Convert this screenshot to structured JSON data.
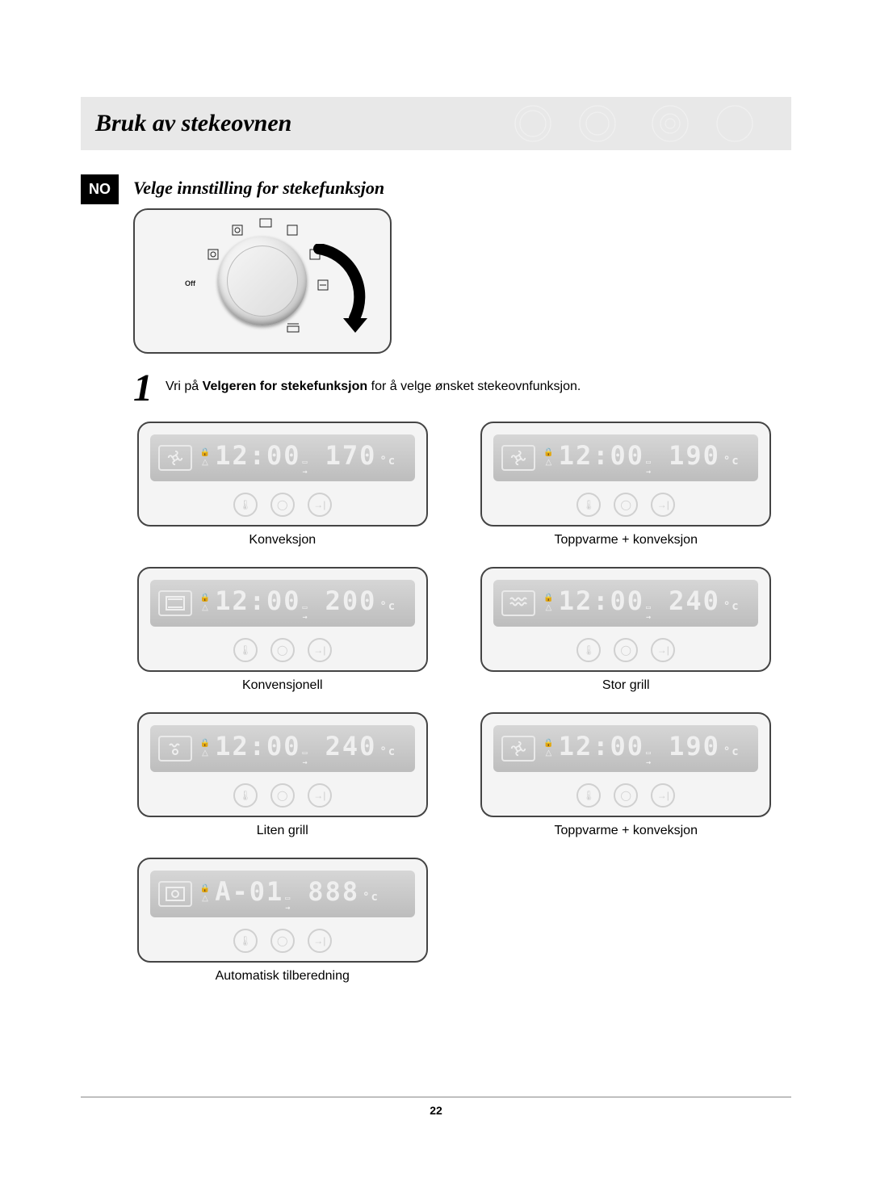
{
  "header": {
    "title": "Bruk av stekeovnen"
  },
  "lang_badge": "NO",
  "subtitle": "Velge innstilling for stekefunksjon",
  "dial": {
    "off_label": "Off"
  },
  "step": {
    "number": "1",
    "text_before": "Vri på ",
    "bold": "Velgeren for stekefunksjon",
    "text_after": " for å velge ønsket stekeovnfunksjon."
  },
  "displays": [
    {
      "mode": "fan",
      "time": "12:00",
      "temp": "170",
      "unit": "°c",
      "caption": "Konveksjon"
    },
    {
      "mode": "fan",
      "time": "12:00",
      "temp": "190",
      "unit": "°c",
      "caption": "Toppvarme + konveksjon"
    },
    {
      "mode": "conven",
      "time": "12:00",
      "temp": "200",
      "unit": "°c",
      "caption": "Konvensjonell"
    },
    {
      "mode": "grill-big",
      "time": "12:00",
      "temp": "240",
      "unit": "°c",
      "caption": "Stor grill"
    },
    {
      "mode": "grill-sm",
      "time": "12:00",
      "temp": "240",
      "unit": "°c",
      "caption": "Liten grill"
    },
    {
      "mode": "fan",
      "time": "12:00",
      "temp": "190",
      "unit": "°c",
      "caption": "Toppvarme + konveksjon"
    },
    {
      "mode": "auto",
      "time": "A-01",
      "temp": "888",
      "unit": "°c",
      "caption": "Automatisk tilberedning"
    }
  ],
  "page_number": "22"
}
